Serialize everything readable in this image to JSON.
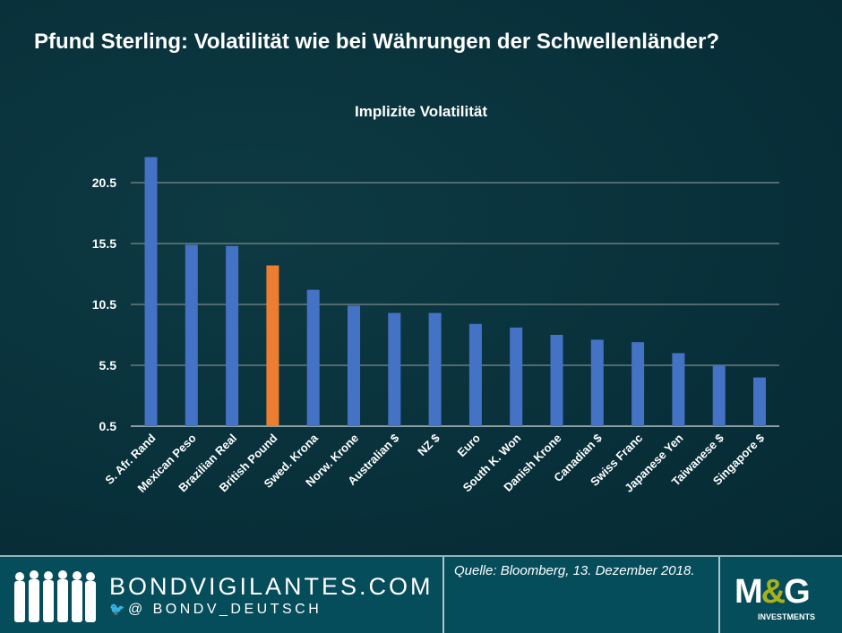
{
  "header": {
    "title": "Pfund Sterling: Volatilität wie bei Währungen der Schwellenländer?"
  },
  "chart_data": {
    "type": "bar",
    "title": "Implizite Volatilität",
    "xlabel": "",
    "ylabel": "",
    "categories": [
      "S. Afr. Rand",
      "Mexican Peso",
      "Brazilian Real",
      "British Pound",
      "Swed. Krona",
      "Norw. Krone",
      "Australian $",
      "NZ $",
      "Euro",
      "South K. Won",
      "Danish Krone",
      "Canadian $",
      "Swiss Franc",
      "Japanese Yen",
      "Taiwanese $",
      "Singapore $"
    ],
    "values": [
      22.6,
      15.4,
      15.3,
      13.7,
      11.7,
      10.4,
      9.8,
      9.8,
      8.9,
      8.6,
      8.0,
      7.6,
      7.4,
      6.5,
      5.5,
      4.5
    ],
    "highlight": "British Pound",
    "ylim": [
      0.5,
      22.6
    ],
    "yticks": [
      "0.5",
      "5.5",
      "10.5",
      "15.5",
      "20.5"
    ],
    "grid": true,
    "colors": {
      "bar": "#4472c4",
      "highlight": "#ed7d31",
      "grid": "#6b7c80"
    }
  },
  "footer": {
    "site": "BONDVIGILANTES.COM",
    "twitter_handle": "@ BONDV_DEUTSCH",
    "source": "Quelle: Bloomberg, 13. Dezember 2018.",
    "logo_text": "M&G",
    "logo_subtext": "INVESTMENTS"
  }
}
